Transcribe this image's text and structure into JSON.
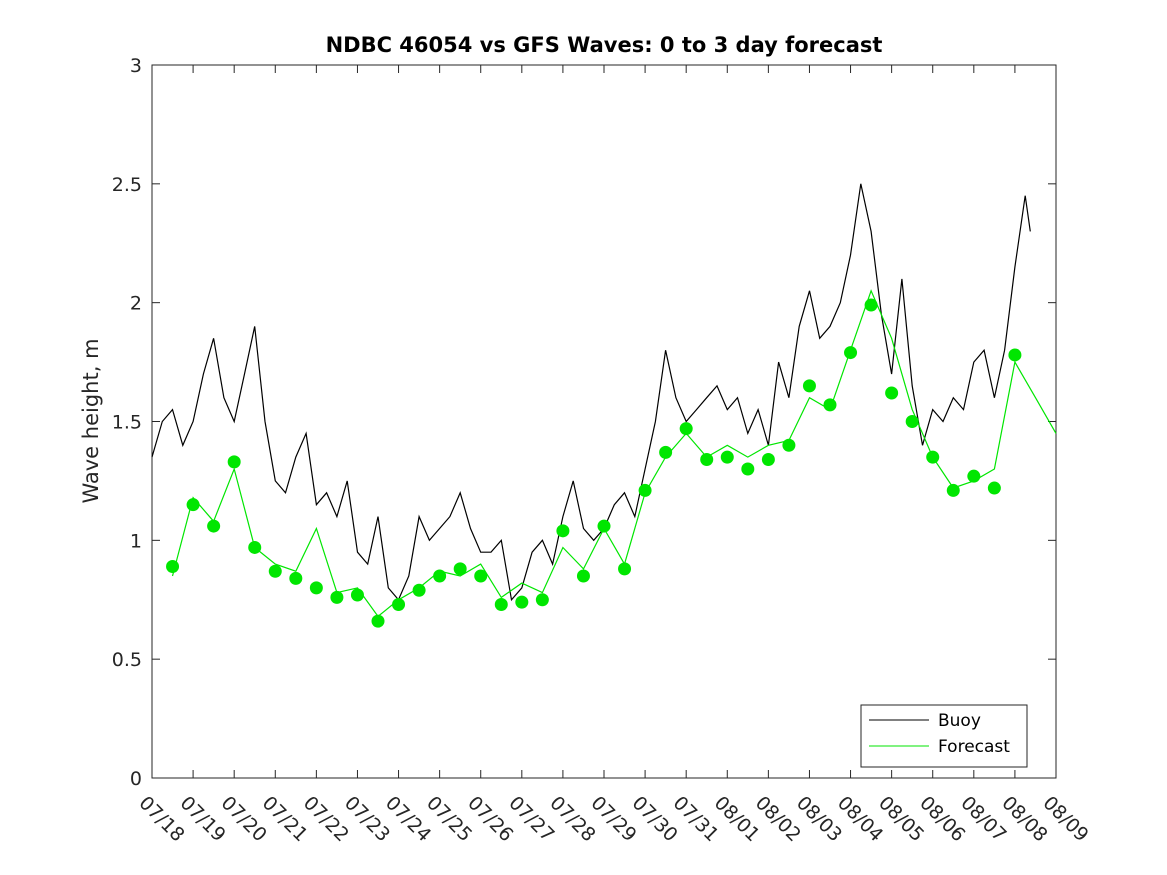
{
  "chart_data": {
    "type": "line",
    "title": "NDBC 46054 vs GFS Waves: 0 to 3 day forecast",
    "xlabel": "",
    "ylabel": "Wave height, m",
    "ylim": [
      0,
      3
    ],
    "yticks": [
      0,
      0.5,
      1,
      1.5,
      2,
      2.5,
      3
    ],
    "ytick_labels": [
      "0",
      "0.5",
      "1",
      "1.5",
      "2",
      "2.5",
      "3"
    ],
    "xlim": [
      "07/18",
      "08/09"
    ],
    "xtick_labels": [
      "07/18",
      "07/19",
      "07/20",
      "07/21",
      "07/22",
      "07/23",
      "07/24",
      "07/25",
      "07/26",
      "07/27",
      "07/28",
      "07/29",
      "07/30",
      "07/31",
      "08/01",
      "08/02",
      "08/03",
      "08/04",
      "08/05",
      "08/06",
      "08/07",
      "08/08",
      "08/09"
    ],
    "grid": false,
    "legend": {
      "position": "bottom-right",
      "entries": [
        "Buoy",
        "Forecast"
      ]
    },
    "colors": {
      "buoy": "#000000",
      "forecast": "#00e600",
      "axes": "#262626"
    },
    "series": [
      {
        "name": "Buoy",
        "x": [
          "07/18 00:00",
          "07/18 06:00",
          "07/18 12:00",
          "07/18 18:00",
          "07/19 00:00",
          "07/19 06:00",
          "07/19 12:00",
          "07/19 18:00",
          "07/20 00:00",
          "07/20 06:00",
          "07/20 12:00",
          "07/20 18:00",
          "07/21 00:00",
          "07/21 06:00",
          "07/21 12:00",
          "07/21 18:00",
          "07/22 00:00",
          "07/22 06:00",
          "07/22 12:00",
          "07/22 18:00",
          "07/23 00:00",
          "07/23 06:00",
          "07/23 12:00",
          "07/23 18:00",
          "07/24 00:00",
          "07/24 06:00",
          "07/24 12:00",
          "07/24 18:00",
          "07/25 00:00",
          "07/25 06:00",
          "07/25 12:00",
          "07/25 18:00",
          "07/26 00:00",
          "07/26 06:00",
          "07/26 12:00",
          "07/26 18:00",
          "07/27 00:00",
          "07/27 06:00",
          "07/27 12:00",
          "07/27 18:00",
          "07/28 00:00",
          "07/28 06:00",
          "07/28 12:00",
          "07/28 18:00",
          "07/29 00:00",
          "07/29 06:00",
          "07/29 12:00",
          "07/29 18:00",
          "07/30 00:00",
          "07/30 06:00",
          "07/30 12:00",
          "07/30 18:00",
          "07/31 00:00",
          "07/31 06:00",
          "07/31 12:00",
          "07/31 18:00",
          "08/01 00:00",
          "08/01 06:00",
          "08/01 12:00",
          "08/01 18:00",
          "08/02 00:00",
          "08/02 06:00",
          "08/02 12:00",
          "08/02 18:00",
          "08/03 00:00",
          "08/03 06:00",
          "08/03 12:00",
          "08/03 18:00",
          "08/04 00:00",
          "08/04 06:00",
          "08/04 12:00",
          "08/04 18:00",
          "08/05 00:00",
          "08/05 06:00",
          "08/05 12:00",
          "08/05 18:00",
          "08/06 00:00",
          "08/06 06:00",
          "08/06 12:00",
          "08/06 18:00",
          "08/07 00:00",
          "08/07 06:00",
          "08/07 12:00",
          "08/07 18:00",
          "08/08 00:00",
          "08/08 06:00",
          "08/08 09:00"
        ],
        "y": [
          1.35,
          1.5,
          1.55,
          1.4,
          1.5,
          1.7,
          1.85,
          1.6,
          1.5,
          1.7,
          1.9,
          1.5,
          1.25,
          1.2,
          1.35,
          1.45,
          1.15,
          1.2,
          1.1,
          1.25,
          0.95,
          0.9,
          1.1,
          0.8,
          0.75,
          0.85,
          1.1,
          1.0,
          1.05,
          1.1,
          1.2,
          1.05,
          0.95,
          0.95,
          1.0,
          0.75,
          0.8,
          0.95,
          1.0,
          0.9,
          1.1,
          1.25,
          1.05,
          1.0,
          1.05,
          1.15,
          1.2,
          1.1,
          1.3,
          1.5,
          1.8,
          1.6,
          1.5,
          1.55,
          1.6,
          1.65,
          1.55,
          1.6,
          1.45,
          1.55,
          1.4,
          1.75,
          1.6,
          1.9,
          2.05,
          1.85,
          1.9,
          2.0,
          2.2,
          2.5,
          2.3,
          1.95,
          1.7,
          2.1,
          1.65,
          1.4,
          1.55,
          1.5,
          1.6,
          1.55,
          1.75,
          1.8,
          1.6,
          1.8,
          2.15,
          2.45,
          2.3
        ]
      },
      {
        "name": "Forecast",
        "x": [
          "07/18 12:00",
          "07/19 00:00",
          "07/19 12:00",
          "07/20 00:00",
          "07/20 12:00",
          "07/21 00:00",
          "07/21 12:00",
          "07/22 00:00",
          "07/22 12:00",
          "07/23 00:00",
          "07/23 12:00",
          "07/24 00:00",
          "07/24 12:00",
          "07/25 00:00",
          "07/25 12:00",
          "07/26 00:00",
          "07/26 12:00",
          "07/27 00:00",
          "07/27 12:00",
          "07/28 00:00",
          "07/28 12:00",
          "07/29 00:00",
          "07/29 12:00",
          "07/30 00:00",
          "07/30 12:00",
          "07/31 00:00",
          "07/31 12:00",
          "08/01 00:00",
          "08/01 12:00",
          "08/02 00:00",
          "08/02 12:00",
          "08/03 00:00",
          "08/03 12:00",
          "08/04 00:00",
          "08/04 12:00",
          "08/05 00:00",
          "08/05 12:00",
          "08/06 00:00",
          "08/06 12:00",
          "08/07 00:00",
          "08/07 12:00",
          "08/08 00:00",
          "08/08 12:00",
          "08/09 00:00"
        ],
        "y": [
          0.85,
          1.18,
          1.08,
          1.3,
          0.97,
          0.9,
          0.87,
          1.05,
          0.78,
          0.8,
          0.68,
          0.75,
          0.8,
          0.87,
          0.85,
          0.9,
          0.76,
          0.82,
          0.78,
          0.97,
          0.88,
          1.05,
          0.9,
          1.2,
          1.35,
          1.45,
          1.35,
          1.4,
          1.35,
          1.4,
          1.42,
          1.6,
          1.55,
          1.8,
          2.05,
          1.85,
          1.55,
          1.35,
          1.22,
          1.25,
          1.3,
          1.75,
          1.6,
          1.45
        ]
      },
      {
        "name": "Forecast",
        "markers": true,
        "x": [
          "07/18 12:00",
          "07/19 00:00",
          "07/19 12:00",
          "07/20 00:00",
          "07/20 12:00",
          "07/21 00:00",
          "07/21 12:00",
          "07/22 00:00",
          "07/22 12:00",
          "07/23 00:00",
          "07/23 12:00",
          "07/24 00:00",
          "07/24 12:00",
          "07/25 00:00",
          "07/25 12:00",
          "07/26 00:00",
          "07/26 12:00",
          "07/27 00:00",
          "07/27 12:00",
          "07/28 00:00",
          "07/28 12:00",
          "07/29 00:00",
          "07/29 12:00",
          "07/30 00:00",
          "07/30 12:00",
          "07/31 00:00",
          "07/31 12:00",
          "08/01 00:00",
          "08/01 12:00",
          "08/02 00:00",
          "08/02 12:00",
          "08/03 00:00",
          "08/03 12:00",
          "08/04 00:00",
          "08/04 12:00",
          "08/05 00:00",
          "08/05 12:00",
          "08/06 00:00",
          "08/06 12:00",
          "08/07 00:00",
          "08/07 12:00",
          "08/08 00:00"
        ],
        "y": [
          0.89,
          1.15,
          1.06,
          1.33,
          0.97,
          0.87,
          0.84,
          0.8,
          0.76,
          0.77,
          0.66,
          0.73,
          0.79,
          0.85,
          0.88,
          0.85,
          0.73,
          0.74,
          0.75,
          1.04,
          0.85,
          1.06,
          0.88,
          1.21,
          1.37,
          1.47,
          1.34,
          1.35,
          1.3,
          1.34,
          1.4,
          1.65,
          1.57,
          1.79,
          1.99,
          1.62,
          1.5,
          1.35,
          1.21,
          1.27,
          1.22,
          1.78
        ]
      }
    ]
  }
}
